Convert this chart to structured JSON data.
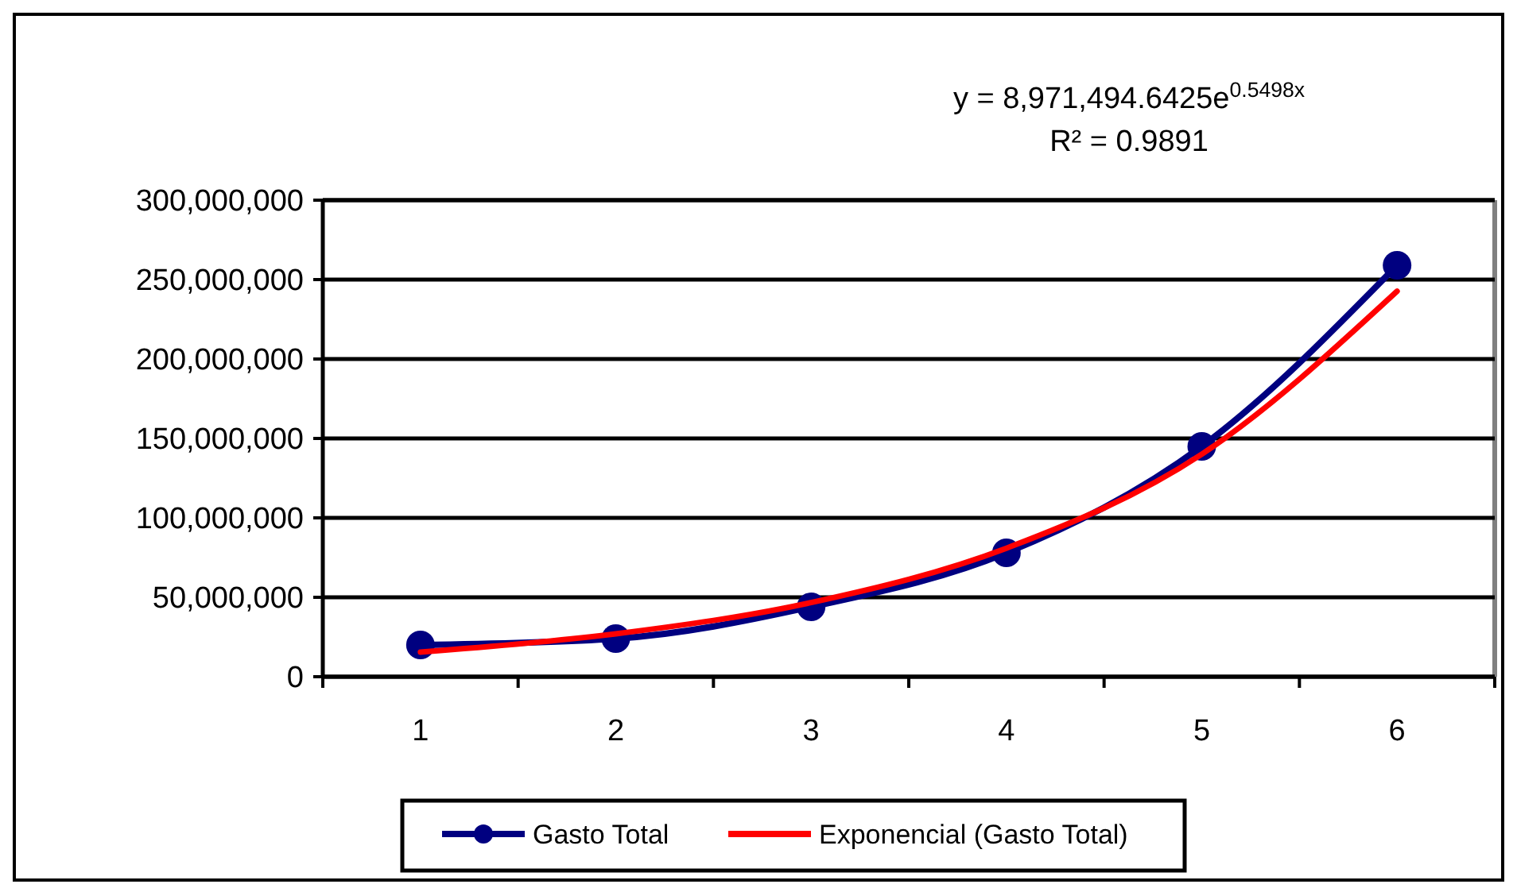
{
  "chart_data": {
    "type": "line",
    "categories": [
      "1",
      "2",
      "3",
      "4",
      "5",
      "6"
    ],
    "series": [
      {
        "name": "Gasto Total",
        "color": "#000080",
        "values": [
          20000000,
          24000000,
          44000000,
          78000000,
          145000000,
          259000000
        ],
        "marker": "circle"
      },
      {
        "name": "Exponencial (Gasto Total)",
        "color": "#ff0000",
        "values": [
          15500000,
          27000000,
          46700000,
          80900000,
          140100000,
          242700000
        ],
        "marker": "none"
      }
    ],
    "ylim": [
      0,
      300000000
    ],
    "yticks": [
      {
        "value": 0,
        "label": "0"
      },
      {
        "value": 50000000,
        "label": "50,000,000"
      },
      {
        "value": 100000000,
        "label": "100,000,000"
      },
      {
        "value": 150000000,
        "label": "150,000,000"
      },
      {
        "value": 200000000,
        "label": "200,000,000"
      },
      {
        "value": 250000000,
        "label": "250,000,000"
      },
      {
        "value": 300000000,
        "label": "300,000,000"
      }
    ],
    "grid": "y",
    "legend": "bottom",
    "annotations": [
      "y = 8,971,494.6425e$^{0.5498x}$",
      "R² = 0.9891"
    ]
  }
}
